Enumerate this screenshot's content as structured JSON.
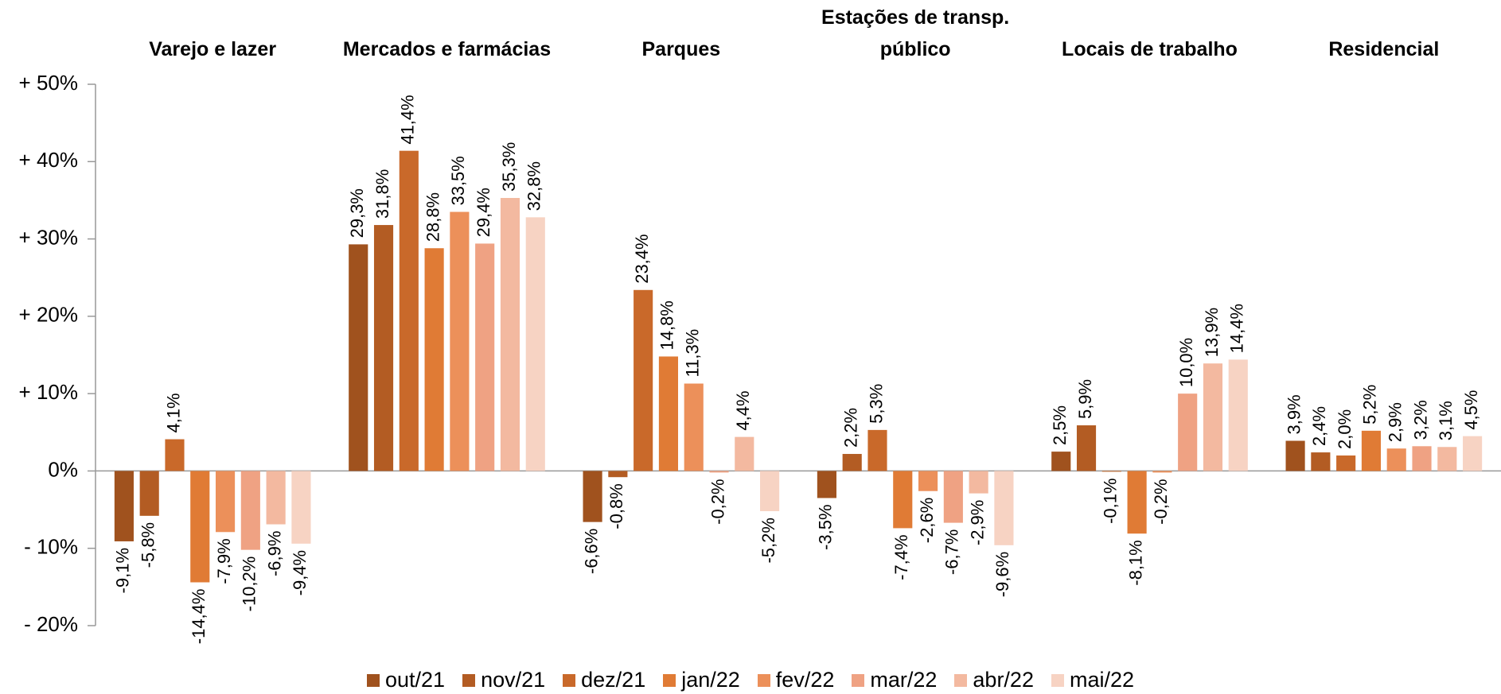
{
  "chart_data": {
    "type": "bar",
    "categories": [
      "Varejo e lazer",
      "Mercados e farmácias",
      "Parques",
      "Estações de transp. público",
      "Locais de trabalho",
      "Residencial"
    ],
    "series": [
      {
        "name": "out/21",
        "color": "#a0521e",
        "values": [
          -9.1,
          29.3,
          -6.6,
          -3.5,
          2.5,
          3.9
        ],
        "value_labels": [
          "-9,1%",
          "29,3%",
          "-6,6%",
          "-3,5%",
          "2,5%",
          "3,9%"
        ]
      },
      {
        "name": "nov/21",
        "color": "#b35c23",
        "values": [
          -5.8,
          31.8,
          -0.8,
          2.2,
          5.9,
          2.4
        ],
        "value_labels": [
          "-5,8%",
          "31,8%",
          "-0,8%",
          "2,2%",
          "5,9%",
          "2,4%"
        ]
      },
      {
        "name": "dez/21",
        "color": "#c9692a",
        "values": [
          4.1,
          41.4,
          23.4,
          5.3,
          -0.1,
          2.0
        ],
        "value_labels": [
          "4,1%",
          "41,4%",
          "23,4%",
          "5,3%",
          "-0,1%",
          "2,0%"
        ]
      },
      {
        "name": "jan/22",
        "color": "#e07b35",
        "values": [
          -14.4,
          28.8,
          14.8,
          -7.4,
          -8.1,
          5.2
        ],
        "value_labels": [
          "-14,4%",
          "28,8%",
          "14,8%",
          "-7,4%",
          "-8,1%",
          "5,2%"
        ]
      },
      {
        "name": "fev/22",
        "color": "#ec905a",
        "values": [
          -7.9,
          33.5,
          11.3,
          -2.6,
          -0.2,
          2.9
        ],
        "value_labels": [
          "-7,9%",
          "33,5%",
          "11,3%",
          "-2,6%",
          "-0,2%",
          "2,9%"
        ]
      },
      {
        "name": "mar/22",
        "color": "#efa283",
        "values": [
          -10.2,
          29.4,
          -0.2,
          -6.7,
          10.0,
          3.2
        ],
        "value_labels": [
          "-10,2%",
          "29,4%",
          "-0,2%",
          "-6,7%",
          "10,0%",
          "3,2%"
        ]
      },
      {
        "name": "abr/22",
        "color": "#f3b9a0",
        "values": [
          -6.9,
          35.3,
          4.4,
          -2.9,
          13.9,
          3.1
        ],
        "value_labels": [
          "-6,9%",
          "35,3%",
          "4,4%",
          "-2,9%",
          "13,9%",
          "3,1%"
        ]
      },
      {
        "name": "mai/22",
        "color": "#f7d3c3",
        "values": [
          -9.4,
          32.8,
          -5.2,
          -9.6,
          14.4,
          4.5
        ],
        "value_labels": [
          "-9,4%",
          "32,8%",
          "-5,2%",
          "-9,6%",
          "14,4%",
          "4,5%"
        ]
      }
    ],
    "ylim": [
      -20,
      50
    ],
    "yticks": [
      {
        "value": -20,
        "label": "- 20%"
      },
      {
        "value": -10,
        "label": "- 10%"
      },
      {
        "value": 0,
        "label": "0%"
      },
      {
        "value": 10,
        "label": "+ 10%"
      },
      {
        "value": 20,
        "label": "+ 20%"
      },
      {
        "value": 30,
        "label": "+ 30%"
      },
      {
        "value": 40,
        "label": "+ 40%"
      },
      {
        "value": 50,
        "label": "+ 50%"
      }
    ],
    "legend": "bottom"
  }
}
